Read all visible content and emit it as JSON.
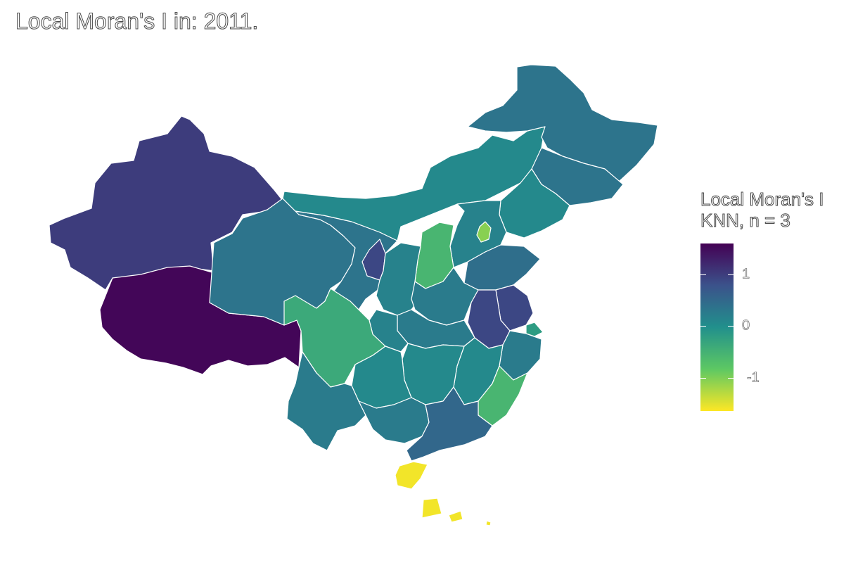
{
  "title": "Local Moran's I in: 2011.",
  "legend": {
    "title_line1": "Local Moran's I",
    "title_line2": "KNN, n = 3",
    "ticks": [
      "1",
      "0",
      "-1"
    ],
    "colors": [
      "#440154",
      "#3b528b",
      "#21908c",
      "#5dc863",
      "#fde725"
    ]
  },
  "regions": [
    {
      "name": "Xinjiang",
      "value": 1.1
    },
    {
      "name": "Tibet",
      "value": 1.6
    },
    {
      "name": "Qinghai",
      "value": 0.4
    },
    {
      "name": "Gansu",
      "value": 0.4
    },
    {
      "name": "Inner Mongolia",
      "value": 0.1
    },
    {
      "name": "Heilongjiang",
      "value": 0.4
    },
    {
      "name": "Jilin",
      "value": 0.4
    },
    {
      "name": "Liaoning",
      "value": 0.1
    },
    {
      "name": "Sichuan",
      "value": -0.4
    },
    {
      "name": "Yunnan",
      "value": 0.3
    },
    {
      "name": "Guangxi",
      "value": 0.3
    },
    {
      "name": "Guangdong",
      "value": 0.6
    },
    {
      "name": "Hainan",
      "value": -1.6
    },
    {
      "name": "Fujian",
      "value": -0.6
    },
    {
      "name": "Shanxi",
      "value": -0.6
    },
    {
      "name": "Beijing",
      "value": -1.1
    },
    {
      "name": "Ningxia",
      "value": 1.0
    },
    {
      "name": "Anhui",
      "value": 1.0
    },
    {
      "name": "Jiangsu",
      "value": 1.0
    },
    {
      "name": "Shandong",
      "value": 0.5
    },
    {
      "name": "Guizhou",
      "value": 0.1
    },
    {
      "name": "Hunan",
      "value": 0.1
    },
    {
      "name": "Jiangxi",
      "value": 0.1
    },
    {
      "name": "Hubei",
      "value": 0.3
    },
    {
      "name": "Henan",
      "value": 0.3
    },
    {
      "name": "Shaanxi",
      "value": 0.2
    },
    {
      "name": "Hebei",
      "value": 0.2
    },
    {
      "name": "Chongqing",
      "value": 0.2
    },
    {
      "name": "Zhejiang",
      "value": 0.3
    },
    {
      "name": "Shanghai",
      "value": -0.2
    },
    {
      "name": "South China Sea Islands",
      "value": -1.6
    }
  ]
}
